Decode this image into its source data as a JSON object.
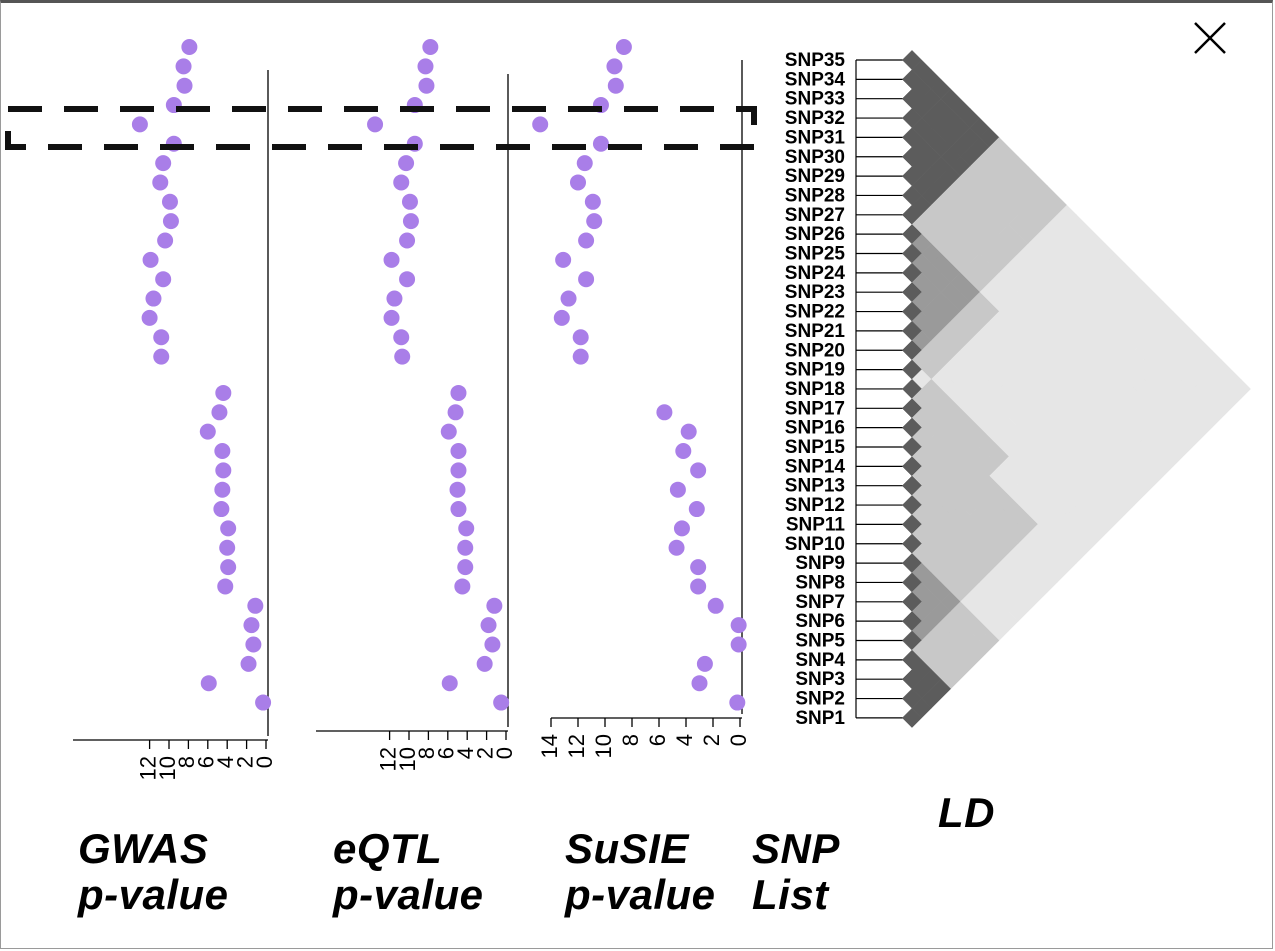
{
  "colors": {
    "point": "#a97ee8",
    "axis": "#000000",
    "ld_dark": "#5c5c5c",
    "ld_mid": "#9a9a9a",
    "ld_light": "#c8c8c8",
    "ld_faint": "#e6e6e6"
  },
  "icons": {
    "close": "close-x-icon"
  },
  "chart_data": [
    {
      "type": "scatter",
      "panel": "GWAS",
      "title_line1": "GWAS",
      "title_line2": "p-value",
      "xlim": [
        12,
        0
      ],
      "ticks": [
        "12",
        "10",
        "8",
        "6",
        "4",
        "2",
        "0"
      ],
      "x_reversed": true,
      "snps": [
        "SNP35",
        "SNP34",
        "SNP33",
        "SNP32",
        "SNP31",
        "SNP30",
        "SNP29",
        "SNP28",
        "SNP27",
        "SNP26",
        "SNP25",
        "SNP24",
        "SNP23",
        "SNP22",
        "SNP21",
        "SNP20",
        "SNP19",
        "SNP18",
        "SNP17",
        "SNP16",
        "SNP15",
        "SNP14",
        "SNP13",
        "SNP12",
        "SNP11",
        "SNP10",
        "SNP9",
        "SNP8",
        "SNP7",
        "SNP6",
        "SNP5",
        "SNP4",
        "SNP3",
        "SNP2",
        "SNP1"
      ],
      "values": [
        7.9,
        8.5,
        8.4,
        9.5,
        13.0,
        9.5,
        10.6,
        10.9,
        9.9,
        9.8,
        10.4,
        11.9,
        10.6,
        11.6,
        12.0,
        10.8,
        10.8,
        4.4,
        4.8,
        6.0,
        4.5,
        4.4,
        4.5,
        4.6,
        3.9,
        4.0,
        3.9,
        4.2,
        1.1,
        1.5,
        1.3,
        1.8,
        5.9,
        0.3,
        null
      ]
    },
    {
      "type": "scatter",
      "panel": "eQTL",
      "title_line1": "eQTL",
      "title_line2": "p-value",
      "xlim": [
        12,
        0
      ],
      "ticks": [
        "12",
        "10",
        "8",
        "6",
        "4",
        "2",
        "0"
      ],
      "x_reversed": true,
      "snps": [
        "SNP35",
        "SNP34",
        "SNP33",
        "SNP32",
        "SNP31",
        "SNP30",
        "SNP29",
        "SNP28",
        "SNP27",
        "SNP26",
        "SNP25",
        "SNP24",
        "SNP23",
        "SNP22",
        "SNP21",
        "SNP20",
        "SNP19",
        "SNP18",
        "SNP17",
        "SNP16",
        "SNP15",
        "SNP14",
        "SNP13",
        "SNP12",
        "SNP11",
        "SNP10",
        "SNP9",
        "SNP8",
        "SNP7",
        "SNP6",
        "SNP5",
        "SNP4",
        "SNP3",
        "SNP2",
        "SNP1"
      ],
      "values": [
        7.8,
        8.3,
        8.2,
        9.4,
        13.5,
        9.4,
        10.3,
        10.8,
        9.9,
        9.8,
        10.2,
        11.8,
        10.2,
        11.5,
        11.8,
        10.8,
        10.7,
        4.9,
        5.2,
        5.9,
        4.9,
        4.9,
        5.0,
        4.9,
        4.1,
        4.2,
        4.2,
        4.5,
        1.2,
        1.8,
        1.4,
        2.2,
        5.8,
        0.5,
        null
      ]
    },
    {
      "type": "scatter",
      "panel": "SuSIE",
      "title_line1": "SuSIE",
      "title_line2": "p-value",
      "xlim": [
        14,
        0
      ],
      "ticks": [
        "14",
        "12",
        "10",
        "8",
        "6",
        "4",
        "2",
        "0"
      ],
      "x_reversed": true,
      "snps": [
        "SNP35",
        "SNP34",
        "SNP33",
        "SNP32",
        "SNP31",
        "SNP30",
        "SNP29",
        "SNP28",
        "SNP27",
        "SNP26",
        "SNP25",
        "SNP24",
        "SNP23",
        "SNP22",
        "SNP21",
        "SNP20",
        "SNP19",
        "SNP18",
        "SNP17",
        "SNP16",
        "SNP15",
        "SNP14",
        "SNP13",
        "SNP12",
        "SNP11",
        "SNP10",
        "SNP9",
        "SNP8",
        "SNP7",
        "SNP6",
        "SNP5",
        "SNP4",
        "SNP3",
        "SNP2",
        "SNP1"
      ],
      "values": [
        8.6,
        9.3,
        9.2,
        10.3,
        14.8,
        10.3,
        11.5,
        12.0,
        10.9,
        10.8,
        11.4,
        13.1,
        11.4,
        12.7,
        13.2,
        11.8,
        11.8,
        null,
        5.6,
        3.8,
        4.2,
        3.1,
        4.6,
        3.2,
        4.3,
        4.7,
        3.1,
        3.1,
        1.8,
        0.1,
        0.1,
        2.6,
        3.0,
        0.2,
        null
      ]
    },
    {
      "type": "heatmap",
      "panel": "LD",
      "title": "LD",
      "snp_list_title_line1": "SNP",
      "snp_list_title_line2": "List",
      "snp_labels": [
        "SNP35",
        "SNP34",
        "SNP33",
        "SNP32",
        "SNP31",
        "SNP30",
        "SNP29",
        "SNP28",
        "SNP27",
        "SNP26",
        "SNP25",
        "SNP24",
        "SNP23",
        "SNP22",
        "SNP21",
        "SNP20",
        "SNP19",
        "SNP18",
        "SNP17",
        "SNP16",
        "SNP15",
        "SNP14",
        "SNP13",
        "SNP12",
        "SNP11",
        "SNP10",
        "SNP9",
        "SNP8",
        "SNP7",
        "SNP6",
        "SNP5",
        "SNP4",
        "SNP3",
        "SNP2",
        "SNP1"
      ],
      "blocks": [
        {
          "from": 1,
          "to": 4,
          "r2": 0.85
        },
        {
          "from": 5,
          "to": 9,
          "r2": 0.7
        },
        {
          "from": 10,
          "to": 17,
          "r2": 0.45
        },
        {
          "from": 18,
          "to": 19,
          "r2": 0.2
        },
        {
          "from": 20,
          "to": 26,
          "r2": 0.55
        },
        {
          "from": 27,
          "to": 35,
          "r2": 0.8
        }
      ]
    }
  ]
}
